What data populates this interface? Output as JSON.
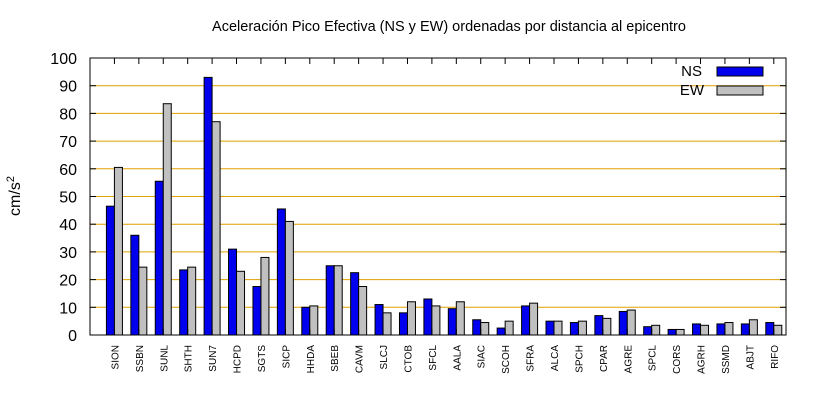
{
  "chart_data": {
    "type": "bar",
    "title": "Aceleración Pico Efectiva (NS y EW) ordenadas por distancia al epicentro",
    "ylabel": "cm/s",
    "ylabel_superscript": "2",
    "xlabel": "",
    "ylim": [
      0,
      100
    ],
    "yticks": [
      0,
      10,
      20,
      30,
      40,
      50,
      60,
      70,
      80,
      90,
      100
    ],
    "grid": "horizontal",
    "legend_position": "top-right",
    "categories": [
      "SION",
      "SSBN",
      "SUNL",
      "SHTH",
      "SUN7",
      "HCPD",
      "SGTS",
      "SICP",
      "HHDA",
      "SBEB",
      "CAVM",
      "SLCJ",
      "CTOB",
      "SFCL",
      "AALA",
      "SIAC",
      "SCOH",
      "SFRA",
      "ALCA",
      "SPCH",
      "CPAR",
      "AGRE",
      "SPCL",
      "CORS",
      "AGRH",
      "SSMD",
      "ABJT",
      "RIFO"
    ],
    "series": [
      {
        "name": "NS",
        "color": "#0000ee",
        "values": [
          46.5,
          36,
          55.5,
          23.5,
          93,
          31,
          17.5,
          45.5,
          10,
          25,
          22.5,
          11,
          8,
          13,
          9.5,
          5.5,
          2.5,
          10.5,
          5,
          4.5,
          7,
          8.5,
          3,
          2,
          4,
          4,
          4,
          4.5
        ]
      },
      {
        "name": "EW",
        "color": "#c0c0c0",
        "values": [
          60.5,
          24.5,
          83.5,
          24.5,
          77,
          23,
          28,
          41,
          10.5,
          25,
          17.5,
          8,
          12,
          10.5,
          12,
          4.5,
          5,
          11.5,
          5,
          5,
          6,
          9,
          3.5,
          2,
          3.5,
          4.5,
          5.5,
          3.5
        ]
      }
    ]
  }
}
